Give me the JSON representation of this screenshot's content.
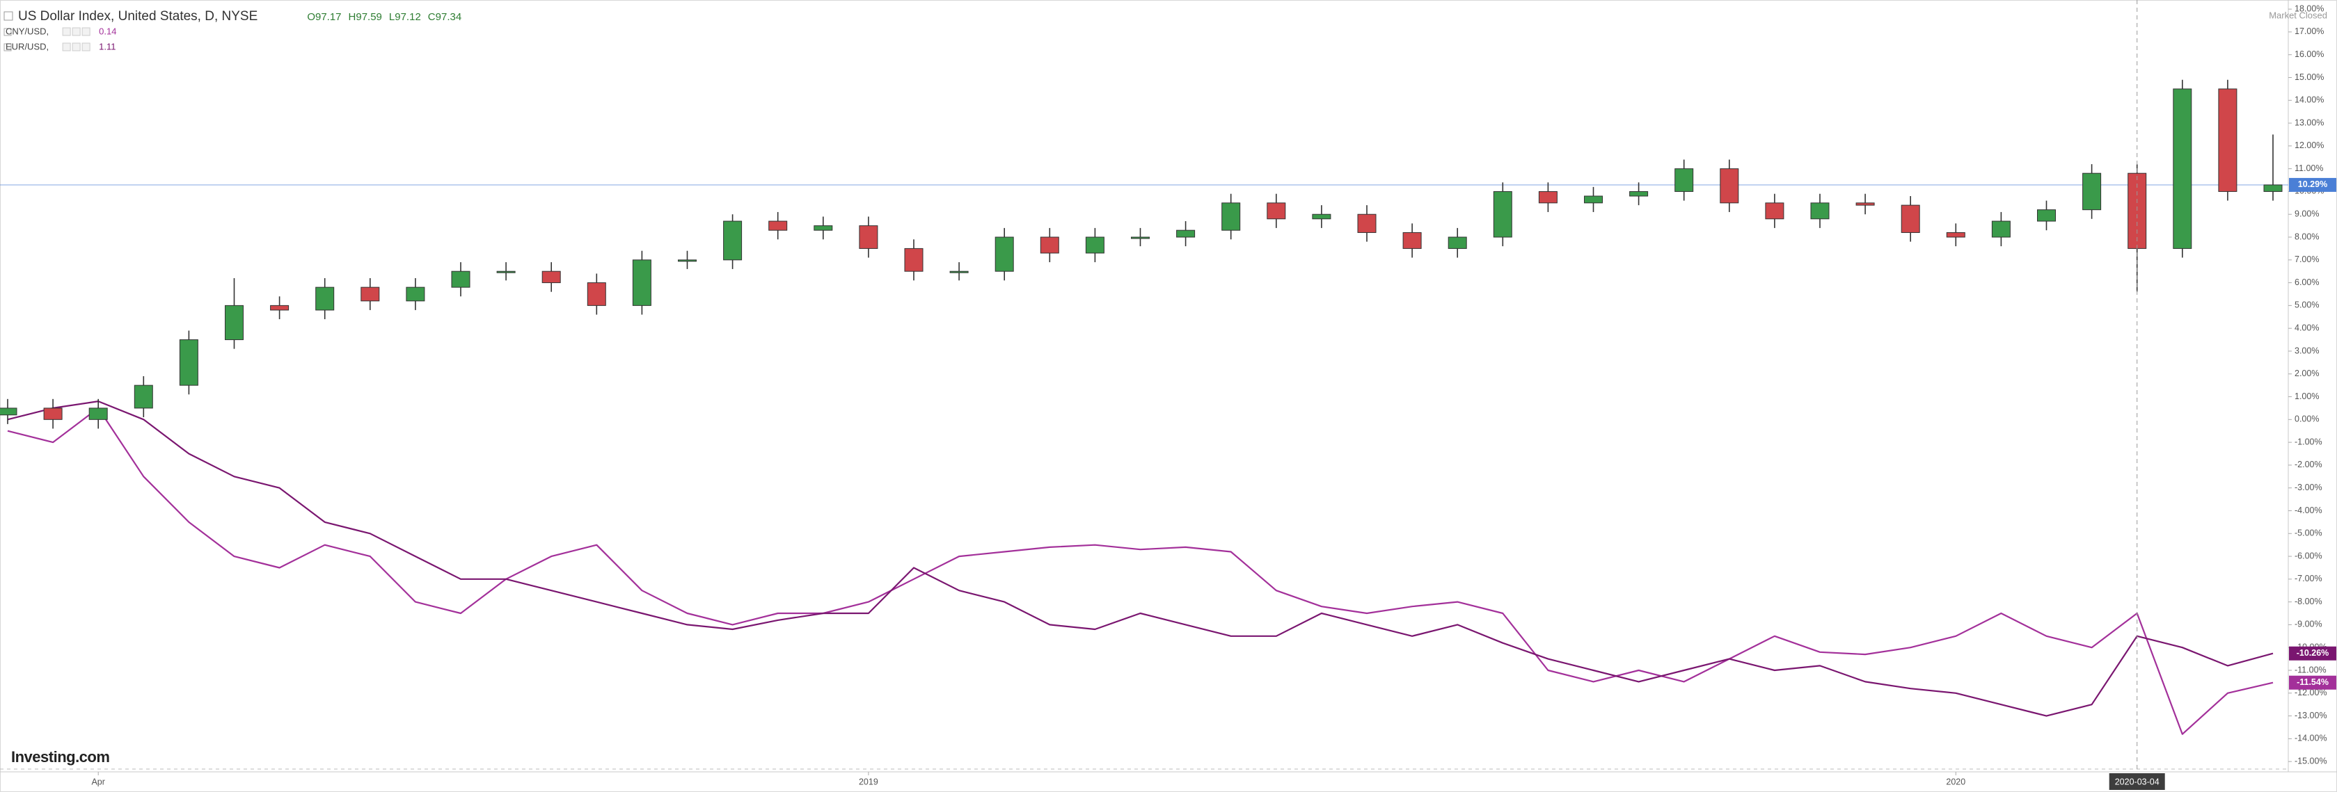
{
  "chart_data": {
    "type": "candlestick",
    "title": "US Dollar Index, United States, D, NYSE",
    "quote": [
      "O97.17",
      "H97.59",
      "L97.12",
      "C97.34"
    ],
    "status": "Market Closed",
    "watermark": "Investing.com",
    "up_color": "#3a9a4a",
    "down_color": "#d0464a",
    "price_line_color": "#4a7fd6",
    "last_label": "10.29%",
    "categories": [
      null,
      null,
      "Apr",
      null,
      null,
      null,
      null,
      null,
      null,
      null,
      null,
      null,
      null,
      null,
      null,
      null,
      null,
      null,
      null,
      "2019",
      null,
      null,
      null,
      null,
      null,
      null,
      null,
      null,
      null,
      null,
      null,
      null,
      null,
      null,
      null,
      null,
      null,
      null,
      null,
      null,
      null,
      null,
      null,
      "2020",
      null,
      null,
      null,
      "2020-03-04",
      null,
      null,
      null
    ],
    "open": [
      0.2,
      0.5,
      0.0,
      0.5,
      1.5,
      3.5,
      5.0,
      4.8,
      5.8,
      5.2,
      5.8,
      6.5,
      6.5,
      6.0,
      5.0,
      7.0,
      7.0,
      8.7,
      8.3,
      8.5,
      7.5,
      6.5,
      6.5,
      8.0,
      7.3,
      8.0,
      8.0,
      8.3,
      9.5,
      8.8,
      9.0,
      8.2,
      7.5,
      8.0,
      10.0,
      9.5,
      9.8,
      10.0,
      11.0,
      9.5,
      8.8,
      9.5,
      9.4,
      8.2,
      8.0,
      8.7,
      9.2,
      10.8,
      7.5,
      14.5,
      10.0
    ],
    "high": [
      0.9,
      0.9,
      0.9,
      1.9,
      3.9,
      6.2,
      5.4,
      6.2,
      6.2,
      6.2,
      6.9,
      6.9,
      6.9,
      6.4,
      7.4,
      7.4,
      9.0,
      9.1,
      8.9,
      8.9,
      7.9,
      6.9,
      8.4,
      8.4,
      8.4,
      8.4,
      8.7,
      9.9,
      9.9,
      9.4,
      9.4,
      8.6,
      8.4,
      10.4,
      10.4,
      10.2,
      10.4,
      11.4,
      11.4,
      9.9,
      9.9,
      9.9,
      9.8,
      8.6,
      9.1,
      9.6,
      11.2,
      11.2,
      14.9,
      14.9,
      12.5
    ],
    "low": [
      -0.2,
      -0.4,
      -0.4,
      0.1,
      1.1,
      3.1,
      4.4,
      4.4,
      4.8,
      4.8,
      5.4,
      6.1,
      5.6,
      4.6,
      4.6,
      6.6,
      6.6,
      7.9,
      7.9,
      7.1,
      6.1,
      6.1,
      6.1,
      6.9,
      6.9,
      7.6,
      7.6,
      7.9,
      8.4,
      8.4,
      7.8,
      7.1,
      7.1,
      7.6,
      9.1,
      9.1,
      9.4,
      9.6,
      9.1,
      8.4,
      8.4,
      9.0,
      7.8,
      7.6,
      7.6,
      8.3,
      8.8,
      5.6,
      7.1,
      9.6,
      9.6
    ],
    "close": [
      0.5,
      0.0,
      0.5,
      1.5,
      3.5,
      5.0,
      4.8,
      5.8,
      5.2,
      5.8,
      6.5,
      6.5,
      6.0,
      5.0,
      7.0,
      7.0,
      8.7,
      8.3,
      8.5,
      7.5,
      6.5,
      6.5,
      8.0,
      7.3,
      8.0,
      8.0,
      8.3,
      9.5,
      8.8,
      9.0,
      8.2,
      7.5,
      8.0,
      10.0,
      9.5,
      9.8,
      10.0,
      11.0,
      9.5,
      8.8,
      9.5,
      9.4,
      8.2,
      8.0,
      8.7,
      9.2,
      10.8,
      7.5,
      14.5,
      10.0,
      10.29
    ],
    "series": [
      {
        "name": "CNY/USD,",
        "quote": "0.14",
        "color": "#a3309a",
        "last_label": "-11.54%",
        "values": [
          -0.5,
          -1.0,
          0.5,
          -2.5,
          -4.5,
          -6.0,
          -6.5,
          -5.5,
          -6.0,
          -8.0,
          -8.5,
          -7.0,
          -6.0,
          -5.5,
          -7.5,
          -8.5,
          -9.0,
          -8.5,
          -8.5,
          -8.0,
          -7.0,
          -6.0,
          -5.8,
          -5.6,
          -5.5,
          -5.7,
          -5.6,
          -5.8,
          -7.5,
          -8.2,
          -8.5,
          -8.2,
          -8.0,
          -8.5,
          -11.0,
          -11.5,
          -11.0,
          -11.5,
          -10.5,
          -9.5,
          -10.2,
          -10.3,
          -10.0,
          -9.5,
          -8.5,
          -9.5,
          -10.0,
          -8.5,
          -13.8,
          -12.0,
          -11.54
        ]
      },
      {
        "name": "EUR/USD,",
        "quote": "1.11",
        "color": "#7a1670",
        "last_label": "-10.26%",
        "values": [
          0.0,
          0.5,
          0.8,
          0.0,
          -1.5,
          -2.5,
          -3.0,
          -4.5,
          -5.0,
          -6.0,
          -7.0,
          -7.0,
          -7.5,
          -8.0,
          -8.5,
          -9.0,
          -9.2,
          -8.8,
          -8.5,
          -8.5,
          -6.5,
          -7.5,
          -8.0,
          -9.0,
          -9.2,
          -8.5,
          -9.0,
          -9.5,
          -9.5,
          -8.5,
          -9.0,
          -9.5,
          -9.0,
          -9.8,
          -10.5,
          -11.0,
          -11.5,
          -11.0,
          -10.5,
          -11.0,
          -10.8,
          -11.5,
          -11.8,
          -12.0,
          -12.5,
          -13.0,
          -12.5,
          -9.5,
          -10.0,
          -10.8,
          -10.26
        ]
      }
    ],
    "ylim": [
      -15.3,
      18.4
    ],
    "yticks": [
      {
        "value": 18,
        "label": "18.00%"
      },
      {
        "value": 17,
        "label": "17.00%"
      },
      {
        "value": 16,
        "label": "16.00%"
      },
      {
        "value": 15,
        "label": "15.00%"
      },
      {
        "value": 14,
        "label": "14.00%"
      },
      {
        "value": 13,
        "label": "13.00%"
      },
      {
        "value": 12,
        "label": "12.00%"
      },
      {
        "value": 11,
        "label": "11.00%"
      },
      {
        "value": 10,
        "label": "10.00%"
      },
      {
        "value": 9,
        "label": "9.00%"
      },
      {
        "value": 8,
        "label": "8.00%"
      },
      {
        "value": 7,
        "label": "7.00%"
      },
      {
        "value": 6,
        "label": "6.00%"
      },
      {
        "value": 5,
        "label": "5.00%"
      },
      {
        "value": 4,
        "label": "4.00%"
      },
      {
        "value": 3,
        "label": "3.00%"
      },
      {
        "value": 2,
        "label": "2.00%"
      },
      {
        "value": 1,
        "label": "1.00%"
      },
      {
        "value": 0,
        "label": "0.00%"
      },
      {
        "value": -1,
        "label": "-1.00%"
      },
      {
        "value": -2,
        "label": "-2.00%"
      },
      {
        "value": -3,
        "label": "-3.00%"
      },
      {
        "value": -4,
        "label": "-4.00%"
      },
      {
        "value": -5,
        "label": "-5.00%"
      },
      {
        "value": -6,
        "label": "-6.00%"
      },
      {
        "value": -7,
        "label": "-7.00%"
      },
      {
        "value": -8,
        "label": "-8.00%"
      },
      {
        "value": -9,
        "label": "-9.00%"
      },
      {
        "value": -10,
        "label": "-10.00%"
      },
      {
        "value": -11,
        "label": "-11.00%"
      },
      {
        "value": -12,
        "label": "-12.00%"
      },
      {
        "value": -13,
        "label": "-13.00%"
      },
      {
        "value": -14,
        "label": "-14.00%"
      },
      {
        "value": -15,
        "label": "-15.00%"
      }
    ]
  }
}
